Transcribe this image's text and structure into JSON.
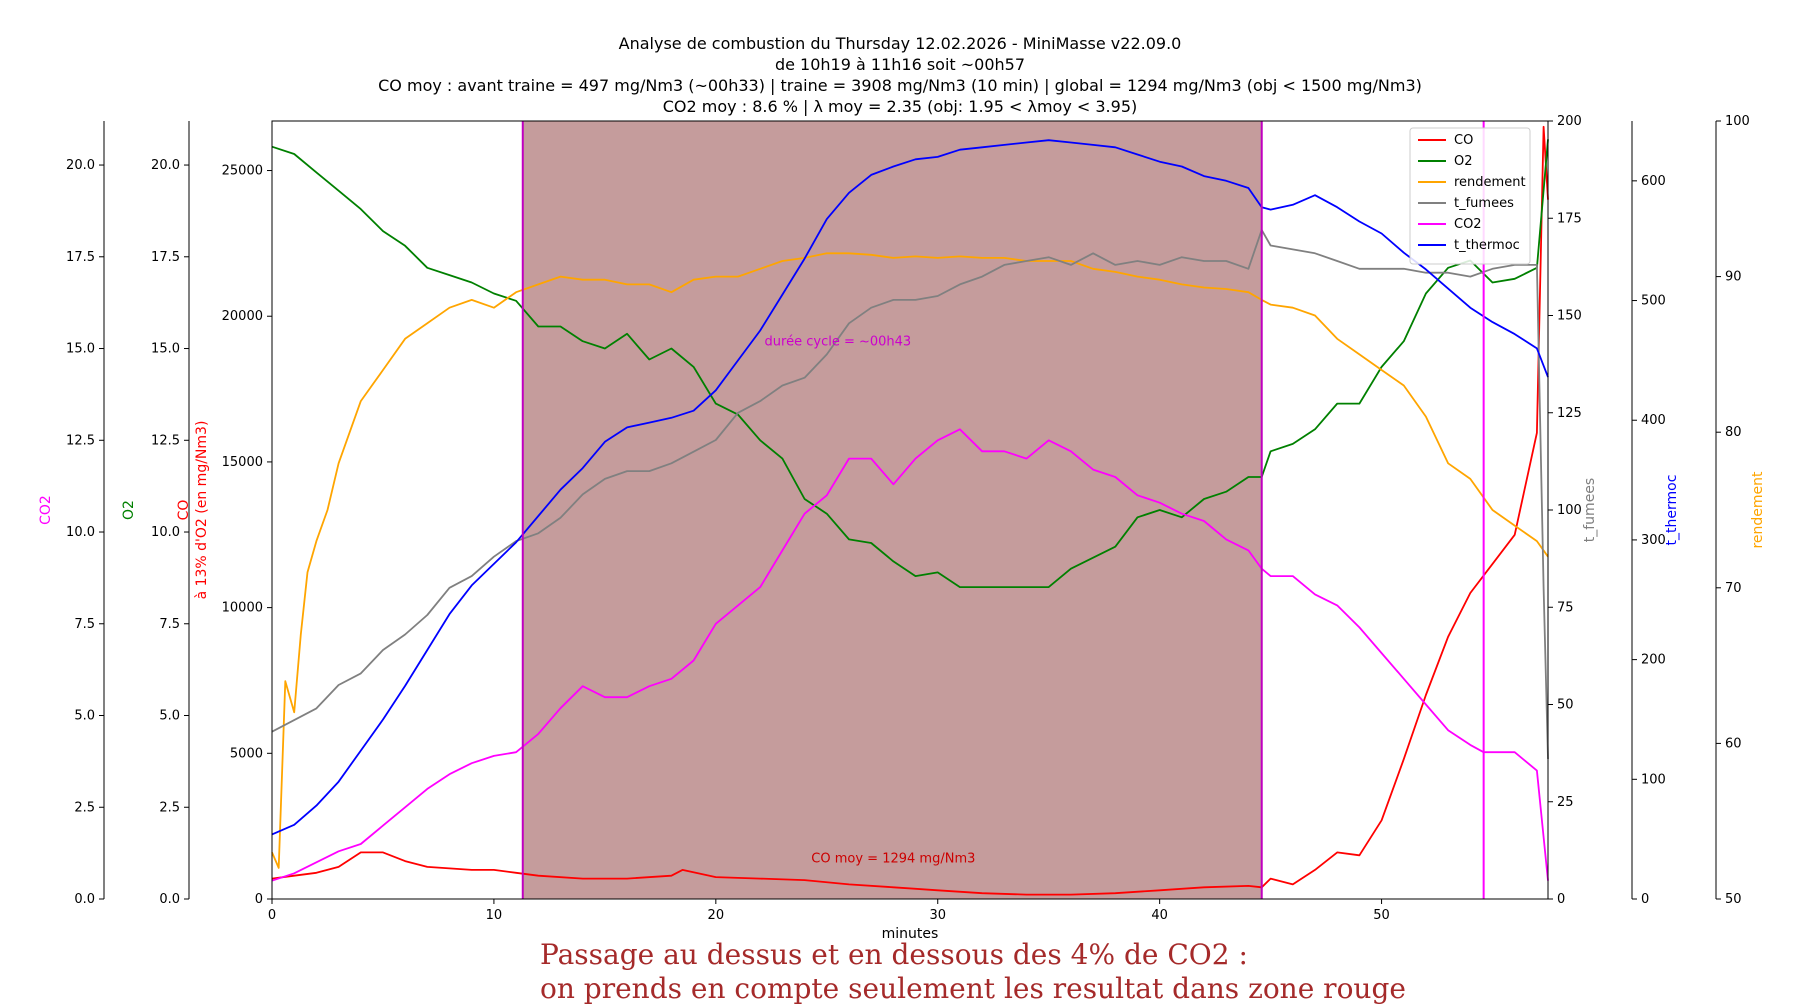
{
  "title_lines": [
    "Analyse de combustion du Thursday 12.02.2026 - MiniMasse v22.09.0",
    "de 10h19 à 11h16 soit ~00h57",
    "CO moy : avant traine = 497 mg/Nm3 (~00h33) | traine = 3908 mg/Nm3 (10 min) | global = 1294 mg/Nm3 (obj < 1500 mg/Nm3)",
    "CO2 moy : 8.6 % | λ moy = 2.35 (obj: 1.95 < λmoy < 3.95)"
  ],
  "caption_lines": [
    "Passage au dessus et en dessous des 4% de CO2 :",
    "on prends en compte seulement les resultat dans zone rouge"
  ],
  "chart_data": {
    "type": "line",
    "xlabel": "minutes",
    "xlim": [
      0,
      57.5
    ],
    "x_ticks": [
      0,
      10,
      20,
      30,
      40,
      50
    ],
    "axes": [
      {
        "id": "co",
        "label": "CO\nà 13% d'O2 (en mg/Nm3)",
        "color": "#ff0000",
        "side": "left",
        "ylim": [
          0,
          26700
        ],
        "ticks": [
          0,
          5000,
          10000,
          15000,
          20000,
          25000
        ]
      },
      {
        "id": "o2",
        "label": "O2",
        "color": "#008000",
        "side": "left",
        "ylim": [
          0,
          21.2
        ],
        "ticks": [
          "0.0",
          "2.5",
          "5.0",
          "7.5",
          "10.0",
          "12.5",
          "15.0",
          "17.5",
          "20.0"
        ]
      },
      {
        "id": "co2",
        "label": "CO2",
        "color": "#ff00ff",
        "side": "left",
        "ylim": [
          0,
          21.2
        ],
        "ticks": [
          "0.0",
          "2.5",
          "5.0",
          "7.5",
          "10.0",
          "12.5",
          "15.0",
          "17.5",
          "20.0"
        ]
      },
      {
        "id": "tf",
        "label": "t_fumees",
        "color": "#808080",
        "side": "right",
        "ylim": [
          0,
          200
        ],
        "ticks": [
          0,
          25,
          50,
          75,
          100,
          125,
          150,
          175,
          200
        ]
      },
      {
        "id": "tt",
        "label": "t_thermoc",
        "color": "#0000ff",
        "side": "right",
        "ylim": [
          0,
          650
        ],
        "ticks": [
          0,
          100,
          200,
          300,
          400,
          500,
          600
        ]
      },
      {
        "id": "rd",
        "label": "rendement",
        "color": "#ffa500",
        "side": "right",
        "ylim": [
          50,
          100
        ],
        "ticks": [
          50,
          60,
          70,
          80,
          90,
          100
        ]
      }
    ],
    "shaded_region": {
      "x0": 11.3,
      "x1": 44.6,
      "color": "#8b3a3a"
    },
    "vlines": [
      {
        "x": 11.3,
        "color": "#c000c0"
      },
      {
        "x": 44.6,
        "color": "#c000c0"
      },
      {
        "x": 54.6,
        "color": "#ff00ff"
      }
    ],
    "annotations": [
      {
        "text": "durée cycle = ~00h43",
        "x": 25.5,
        "y": 19000,
        "color": "#cc00cc"
      },
      {
        "text": "CO moy = 1294 mg/Nm3",
        "x": 28.0,
        "y": 1250,
        "color": "#cc0000"
      }
    ],
    "legend": {
      "position": "top-right",
      "entries": [
        "CO",
        "O2",
        "rendement",
        "t_fumees",
        "CO2",
        "t_thermoc"
      ]
    },
    "series": [
      {
        "name": "CO",
        "axis": "co",
        "color": "#ff0000",
        "x": [
          0,
          1,
          2,
          3,
          4,
          5,
          6,
          7,
          8,
          9,
          10,
          11,
          12,
          14,
          16,
          18,
          18.5,
          20,
          22,
          24,
          26,
          28,
          30,
          32,
          34,
          36,
          38,
          40,
          42,
          44,
          44.6,
          45,
          46,
          47,
          48,
          49,
          50,
          51,
          52,
          53,
          54,
          55,
          56,
          57,
          57.3,
          57.5
        ],
        "y": [
          700,
          800,
          900,
          1100,
          1600,
          1600,
          1300,
          1100,
          1050,
          1000,
          1000,
          900,
          800,
          700,
          700,
          800,
          1000,
          750,
          700,
          650,
          500,
          400,
          300,
          200,
          150,
          150,
          200,
          300,
          400,
          450,
          400,
          700,
          500,
          1000,
          1600,
          1500,
          2700,
          4800,
          7000,
          9000,
          10500,
          11500,
          12500,
          16000,
          26500,
          24000
        ]
      },
      {
        "name": "O2",
        "axis": "o2",
        "color": "#008000",
        "x": [
          0,
          1,
          2,
          3,
          4,
          5,
          6,
          7,
          8,
          9,
          10,
          11,
          12,
          13,
          14,
          15,
          16,
          17,
          18,
          19,
          20,
          21,
          22,
          23,
          24,
          25,
          26,
          27,
          28,
          29,
          30,
          31,
          32,
          33,
          34,
          35,
          36,
          37,
          38,
          39,
          40,
          41,
          42,
          43,
          44,
          44.6,
          45,
          46,
          47,
          48,
          49,
          50,
          51,
          52,
          53,
          54,
          55,
          56,
          57,
          57.5
        ],
        "y": [
          20.5,
          20.3,
          19.8,
          19.3,
          18.8,
          18.2,
          17.8,
          17.2,
          17.0,
          16.8,
          16.5,
          16.3,
          15.6,
          15.6,
          15.2,
          15.0,
          15.4,
          14.7,
          15.0,
          14.5,
          13.5,
          13.2,
          12.5,
          12.0,
          10.9,
          10.5,
          9.8,
          9.7,
          9.2,
          8.8,
          8.9,
          8.5,
          8.5,
          8.5,
          8.5,
          8.5,
          9.0,
          9.3,
          9.6,
          10.4,
          10.6,
          10.4,
          10.9,
          11.1,
          11.5,
          11.5,
          12.2,
          12.4,
          12.8,
          13.5,
          13.5,
          14.5,
          15.2,
          16.5,
          17.2,
          17.4,
          16.8,
          16.9,
          17.2,
          20.7
        ]
      },
      {
        "name": "rendement",
        "axis": "rd",
        "color": "#ffa500",
        "x": [
          0,
          0.3,
          0.6,
          1,
          1.3,
          1.6,
          2,
          2.5,
          3,
          4,
          5,
          6,
          7,
          8,
          9,
          10,
          11,
          12,
          13,
          14,
          15,
          16,
          17,
          18,
          19,
          20,
          21,
          22,
          23,
          24,
          25,
          26,
          27,
          28,
          29,
          30,
          31,
          32,
          33,
          34,
          35,
          36,
          37,
          38,
          39,
          40,
          41,
          42,
          43,
          44,
          44.6,
          45,
          46,
          47,
          48,
          49,
          50,
          51,
          52,
          53,
          54,
          55,
          56,
          57,
          57.5
        ],
        "y": [
          53,
          52,
          64,
          62,
          67,
          71,
          73,
          75,
          78,
          82,
          84,
          86,
          87,
          88,
          88.5,
          88,
          89,
          89.5,
          90,
          89.8,
          89.8,
          89.5,
          89.5,
          89,
          89.8,
          90,
          90,
          90.5,
          91,
          91.2,
          91.5,
          91.5,
          91.4,
          91.2,
          91.3,
          91.2,
          91.3,
          91.2,
          91.2,
          91,
          91,
          91,
          90.5,
          90.3,
          90,
          89.8,
          89.5,
          89.3,
          89.2,
          89,
          88.5,
          88.2,
          88,
          87.5,
          86,
          85,
          84,
          83,
          81,
          78,
          77,
          75,
          74,
          73,
          72
        ]
      },
      {
        "name": "t_fumees",
        "axis": "tf",
        "color": "#808080",
        "x": [
          0,
          1,
          2,
          3,
          4,
          5,
          6,
          7,
          8,
          9,
          10,
          11,
          12,
          13,
          14,
          15,
          16,
          17,
          18,
          19,
          20,
          21,
          22,
          23,
          24,
          25,
          26,
          27,
          28,
          29,
          30,
          31,
          32,
          33,
          34,
          35,
          36,
          37,
          38,
          39,
          40,
          41,
          42,
          43,
          44,
          44.6,
          45,
          46,
          47,
          48,
          49,
          50,
          51,
          52,
          53,
          54,
          55,
          56,
          57,
          57.3,
          57.5
        ],
        "y": [
          43,
          46,
          49,
          55,
          58,
          64,
          68,
          73,
          80,
          83,
          88,
          92,
          94,
          98,
          104,
          108,
          110,
          110,
          112,
          115,
          118,
          125,
          128,
          132,
          134,
          140,
          148,
          152,
          154,
          154,
          155,
          158,
          160,
          163,
          164,
          165,
          163,
          166,
          163,
          164,
          163,
          165,
          164,
          164,
          162,
          172,
          168,
          167,
          166,
          164,
          162,
          162,
          162,
          161,
          161,
          160,
          162,
          163,
          163,
          80,
          36
        ]
      },
      {
        "name": "CO2",
        "axis": "co2",
        "color": "#ff00ff",
        "x": [
          0,
          1,
          2,
          3,
          4,
          5,
          6,
          7,
          8,
          9,
          10,
          11,
          12,
          13,
          14,
          15,
          16,
          17,
          18,
          19,
          20,
          21,
          22,
          23,
          24,
          25,
          26,
          27,
          28,
          29,
          30,
          31,
          32,
          33,
          34,
          35,
          36,
          37,
          38,
          39,
          40,
          41,
          42,
          43,
          44,
          44.6,
          45,
          46,
          47,
          48,
          49,
          50,
          51,
          52,
          53,
          54,
          54.6,
          55,
          56,
          57,
          57.5
        ],
        "y": [
          0.5,
          0.7,
          1.0,
          1.3,
          1.5,
          2.0,
          2.5,
          3.0,
          3.4,
          3.7,
          3.9,
          4.0,
          4.5,
          5.2,
          5.8,
          5.5,
          5.5,
          5.8,
          6.0,
          6.5,
          7.5,
          8.0,
          8.5,
          9.5,
          10.5,
          11.0,
          12.0,
          12.0,
          11.3,
          12.0,
          12.5,
          12.8,
          12.2,
          12.2,
          12.0,
          12.5,
          12.2,
          11.7,
          11.5,
          11.0,
          10.8,
          10.5,
          10.3,
          9.8,
          9.5,
          9.0,
          8.8,
          8.8,
          8.3,
          8.0,
          7.4,
          6.7,
          6.0,
          5.3,
          4.6,
          4.2,
          4.0,
          4.0,
          4.0,
          3.5,
          0.5
        ]
      },
      {
        "name": "t_thermoc",
        "axis": "tt",
        "color": "#0000ff",
        "x": [
          0,
          1,
          2,
          3,
          4,
          5,
          6,
          7,
          8,
          9,
          10,
          11,
          12,
          13,
          14,
          15,
          16,
          17,
          18,
          19,
          20,
          21,
          22,
          23,
          24,
          25,
          26,
          27,
          28,
          29,
          30,
          31,
          32,
          33,
          34,
          35,
          36,
          37,
          38,
          39,
          40,
          41,
          42,
          43,
          44,
          44.6,
          45,
          46,
          47,
          48,
          49,
          50,
          51,
          52,
          53,
          54,
          55,
          56,
          57,
          57.5
        ],
        "y": [
          54,
          62,
          78,
          98,
          124,
          150,
          178,
          208,
          238,
          262,
          280,
          298,
          320,
          342,
          360,
          382,
          394,
          398,
          402,
          408,
          425,
          450,
          475,
          505,
          535,
          568,
          590,
          605,
          612,
          618,
          620,
          626,
          628,
          630,
          632,
          634,
          632,
          630,
          628,
          622,
          616,
          612,
          604,
          600,
          594,
          578,
          576,
          580,
          588,
          578,
          566,
          556,
          540,
          526,
          510,
          494,
          482,
          472,
          460,
          436
        ]
      }
    ]
  }
}
